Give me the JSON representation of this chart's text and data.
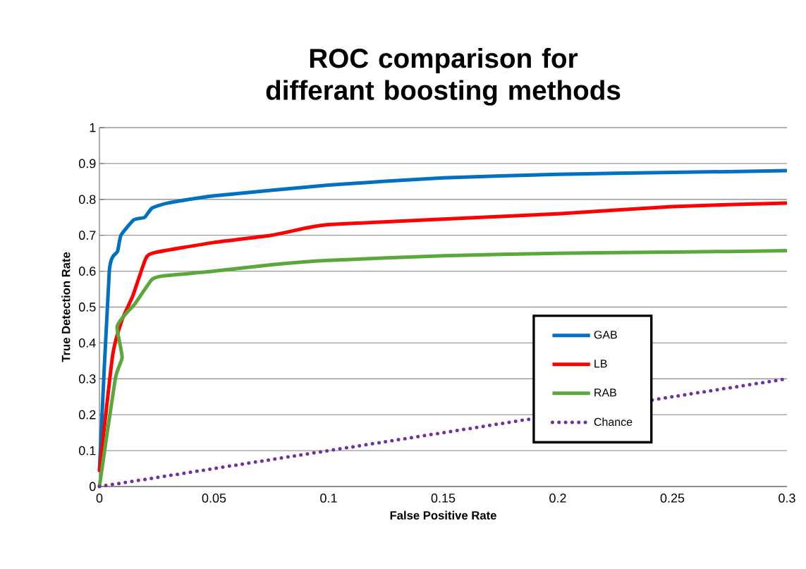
{
  "chart_data": {
    "type": "line",
    "title": "ROC comparison for differant boosting methods",
    "xlabel": "False Positive Rate",
    "ylabel": "True Detection Rate",
    "xlim": [
      0,
      0.3
    ],
    "ylim": [
      0,
      1
    ],
    "xticks": [
      0,
      0.05,
      0.1,
      0.15,
      0.2,
      0.25,
      0.3
    ],
    "yticks": [
      0,
      0.1,
      0.2,
      0.3,
      0.4,
      0.5,
      0.6,
      0.7,
      0.8,
      0.9,
      1
    ],
    "grid": "y",
    "legend": "bottom right",
    "series": [
      {
        "name": "GAB",
        "color": "#0070c0",
        "line_style": "solid",
        "x": [
          0,
          0.0043,
          0.0079,
          0.0094,
          0.015,
          0.0197,
          0.023,
          0.03,
          0.05,
          0.1,
          0.15,
          0.2,
          0.25,
          0.3
        ],
        "values": [
          0.045,
          0.6,
          0.655,
          0.7,
          0.743,
          0.75,
          0.776,
          0.79,
          0.81,
          0.84,
          0.86,
          0.87,
          0.875,
          0.88
        ]
      },
      {
        "name": "LB",
        "color": "#ff0000",
        "line_style": "solid",
        "x": [
          0,
          0.0058,
          0.0099,
          0.0145,
          0.0202,
          0.0243,
          0.05,
          0.075,
          0.09,
          0.1,
          0.15,
          0.2,
          0.25,
          0.3
        ],
        "values": [
          0.04,
          0.367,
          0.465,
          0.53,
          0.635,
          0.652,
          0.68,
          0.7,
          0.72,
          0.73,
          0.745,
          0.76,
          0.78,
          0.79
        ]
      },
      {
        "name": "RAB",
        "color": "#5aa83c",
        "line_style": "solid",
        "x": [
          0,
          0.0069,
          0.0099,
          0.0077,
          0.012,
          0.0156,
          0.0228,
          0.027,
          0.05,
          0.075,
          0.1,
          0.15,
          0.2,
          0.25,
          0.3
        ],
        "values": [
          0,
          0.3,
          0.36,
          0.445,
          0.485,
          0.51,
          0.576,
          0.586,
          0.6,
          0.618,
          0.63,
          0.643,
          0.65,
          0.653,
          0.657
        ]
      },
      {
        "name": "Chance",
        "color": "#7030a0",
        "line_style": "dotted",
        "x": [
          0,
          0.3
        ],
        "values": [
          0,
          0.3
        ]
      }
    ]
  }
}
